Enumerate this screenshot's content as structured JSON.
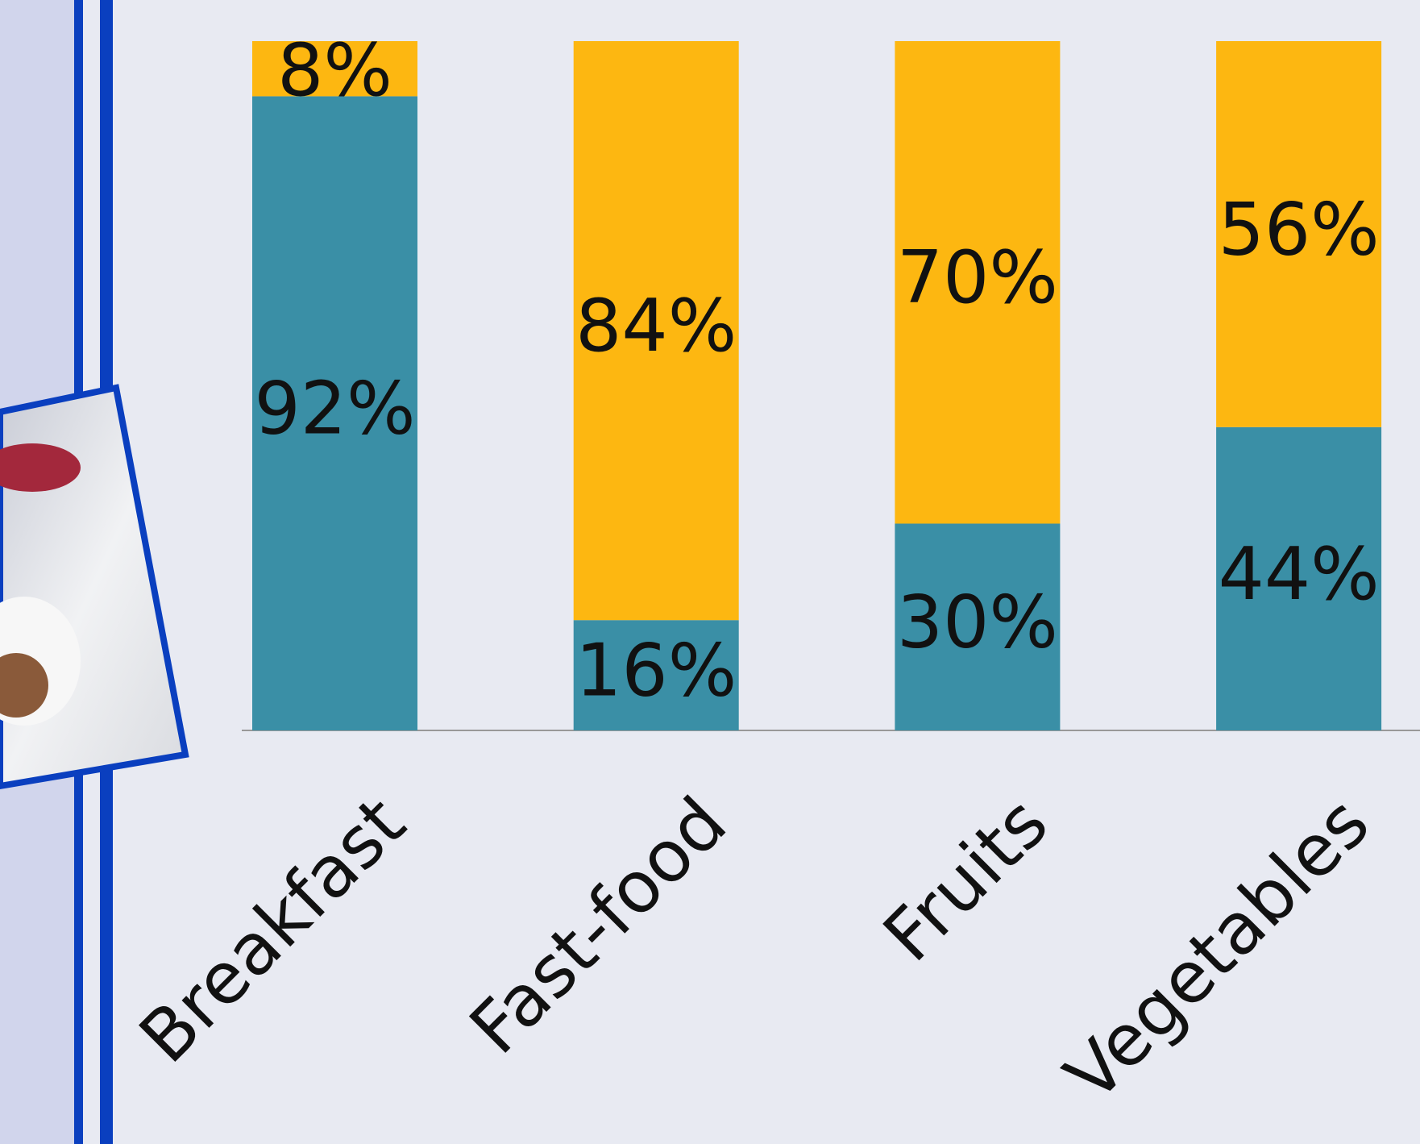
{
  "chart_data": {
    "type": "stacked-bar",
    "categories": [
      "Breakfast",
      "Fast-food",
      "Fruits",
      "Vegetables"
    ],
    "series": [
      {
        "color": "#3a8fa6",
        "values": [
          92,
          16,
          30,
          44
        ],
        "value_labels": [
          "92%",
          "16%",
          "30%",
          "44%"
        ]
      },
      {
        "color": "#fdb711",
        "values": [
          8,
          84,
          70,
          56
        ],
        "value_labels": [
          "8%",
          "84%",
          "70%",
          "56%"
        ]
      }
    ]
  }
}
